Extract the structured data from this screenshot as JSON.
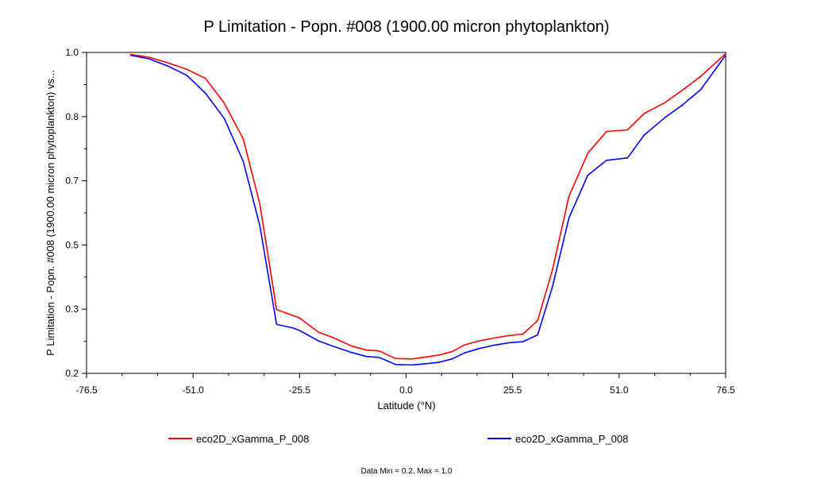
{
  "chart_data": {
    "type": "line",
    "title": "P Limitation - Popn. #008 (1900.00 micron phytoplankton)",
    "xlabel": "Latitude (°N)",
    "ylabel": "P Limitation - Popn. #008 (1900.00 micron phytoplankton) vs...",
    "xlim": [
      -76.5,
      76.5
    ],
    "ylim": [
      0.2,
      1.0
    ],
    "x_ticks": [
      "-76.5",
      "-51.0",
      "-25.5",
      "0.0",
      "25.5",
      "51.0",
      "76.5"
    ],
    "y_ticks": [
      "0.2",
      "0.3",
      "0.5",
      "0.7",
      "0.8",
      "1.0"
    ],
    "grid": false,
    "legend_position": "bottom",
    "series": [
      {
        "name": "eco2D_xGamma_P_008",
        "color": "#ff0000",
        "x": [
          -66,
          -61.5,
          -57,
          -52.5,
          -48,
          -43.5,
          -39,
          -35,
          -31,
          -27,
          -25.5,
          -21,
          -17,
          -13,
          -9.5,
          -6.5,
          -2.5,
          1.5,
          5.5,
          8,
          11,
          14,
          17.5,
          21,
          24.5,
          28,
          31.5,
          35,
          39,
          43.5,
          48,
          53,
          57,
          62,
          66,
          70.5,
          76.5
        ],
        "values": [
          0.995,
          0.988,
          0.974,
          0.958,
          0.935,
          0.873,
          0.785,
          0.622,
          0.359,
          0.344,
          0.338,
          0.303,
          0.287,
          0.268,
          0.258,
          0.256,
          0.237,
          0.236,
          0.242,
          0.246,
          0.254,
          0.271,
          0.281,
          0.288,
          0.294,
          0.298,
          0.332,
          0.457,
          0.642,
          0.749,
          0.803,
          0.807,
          0.848,
          0.875,
          0.905,
          0.94,
          0.997
        ]
      },
      {
        "name": "eco2D_xGamma_P_008",
        "color": "#0000ff",
        "x": [
          -66,
          -61.5,
          -57,
          -52.5,
          -48,
          -43.5,
          -39,
          -35,
          -31,
          -27,
          -25.5,
          -21,
          -17,
          -13,
          -9.5,
          -6.5,
          -2.5,
          1.5,
          5.5,
          8,
          11,
          14,
          17.5,
          21,
          24.5,
          28,
          31.5,
          35,
          39,
          43.5,
          48,
          53,
          57,
          62,
          66,
          70.5,
          76.5
        ],
        "values": [
          0.993,
          0.984,
          0.966,
          0.943,
          0.898,
          0.835,
          0.729,
          0.568,
          0.322,
          0.313,
          0.307,
          0.281,
          0.266,
          0.252,
          0.242,
          0.24,
          0.222,
          0.221,
          0.225,
          0.228,
          0.236,
          0.251,
          0.262,
          0.27,
          0.276,
          0.279,
          0.296,
          0.415,
          0.588,
          0.694,
          0.731,
          0.737,
          0.794,
          0.838,
          0.868,
          0.907,
          0.993
        ]
      }
    ],
    "legend": [
      {
        "label": "eco2D_xGamma_P_008",
        "color": "#ff0000"
      },
      {
        "label": "eco2D_xGamma_P_008",
        "color": "#0000ff"
      }
    ],
    "footnote": "Data Min = 0.2, Max = 1.0"
  }
}
